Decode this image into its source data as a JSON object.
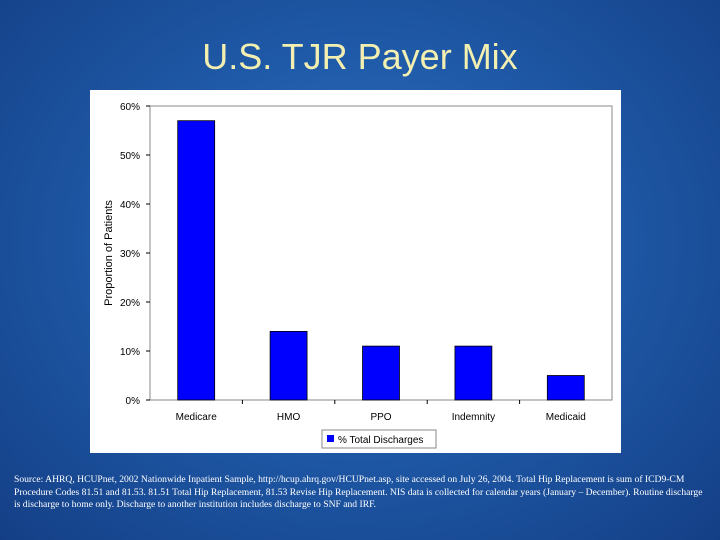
{
  "slide": {
    "title": "U.S. TJR Payer Mix",
    "source_note": "Source: AHRQ, HCUPnet, 2002 Nationwide Inpatient Sample, http://hcup.ahrq.gov/HCUPnet.asp, site accessed on July 26, 2004. Total Hip Replacement is sum of ICD9-CM Procedure Codes 81.51 and 81.53. 81.51 Total Hip Replacement, 81.53 Revise Hip Replacement. NIS data is collected for calendar years (January – December). Routine discharge is discharge to home only. Discharge to another institution includes discharge to SNF and IRF."
  },
  "colors": {
    "bar": "#0000ff",
    "background": "#1f5aa8",
    "title": "#f3efb0"
  },
  "chart_data": {
    "type": "bar",
    "categories": [
      "Medicare",
      "HMO",
      "PPO",
      "Indemnity",
      "Medicaid"
    ],
    "series": [
      {
        "name": "% Total Discharges",
        "values": [
          57,
          14,
          11,
          11,
          5
        ]
      }
    ],
    "ylabel": "Proportion of Patients",
    "ylim": [
      0,
      60
    ],
    "yticks": [
      0,
      10,
      20,
      30,
      40,
      50,
      60
    ],
    "ytick_labels": [
      "0%",
      "10%",
      "20%",
      "30%",
      "40%",
      "50%",
      "60%"
    ],
    "grid": false,
    "legend_position": "bottom"
  }
}
